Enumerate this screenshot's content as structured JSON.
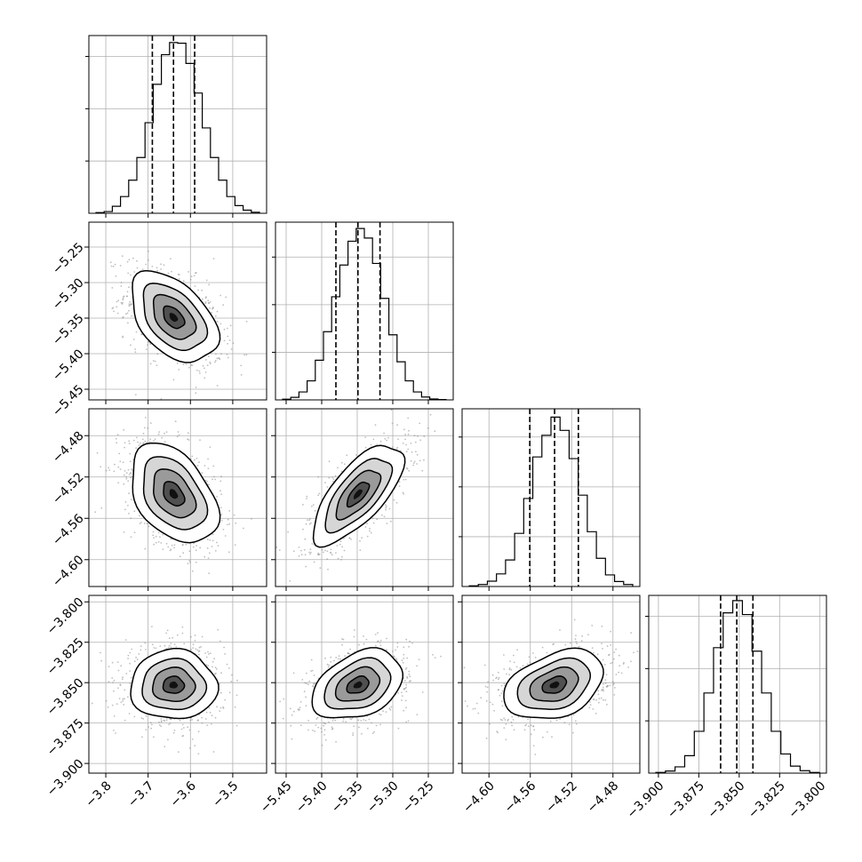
{
  "chart_data": {
    "type": "corner",
    "grid": true,
    "params": [
      {
        "range": [
          -3.84,
          -3.42
        ],
        "ticks": [
          {
            "v": -3.8,
            "label": "−3.8"
          },
          {
            "v": -3.7,
            "label": "−3.7"
          },
          {
            "v": -3.6,
            "label": "−3.6"
          },
          {
            "v": -3.5,
            "label": "−3.5"
          }
        ],
        "quantiles": [
          -3.69,
          -3.64,
          -3.59
        ],
        "hist": [
          2,
          5,
          20,
          48,
          95,
          160,
          260,
          370,
          455,
          490,
          488,
          430,
          345,
          245,
          160,
          95,
          48,
          22,
          9,
          3
        ],
        "hist_ymax": 510,
        "hist_yticks": [
          150,
          300,
          450
        ]
      },
      {
        "range": [
          -5.465,
          -5.215
        ],
        "ticks": [
          {
            "v": -5.45,
            "label": "−5.45"
          },
          {
            "v": -5.4,
            "label": "−5.40"
          },
          {
            "v": -5.35,
            "label": "−5.35"
          },
          {
            "v": -5.3,
            "label": "−5.30"
          },
          {
            "v": -5.25,
            "label": "−5.25"
          }
        ],
        "quantiles": [
          -5.38,
          -5.349,
          -5.318
        ],
        "hist": [
          2,
          8,
          25,
          60,
          125,
          215,
          325,
          425,
          500,
          540,
          510,
          430,
          320,
          205,
          120,
          60,
          25,
          9,
          3,
          1
        ],
        "hist_ymax": 560,
        "hist_yticks": [
          150,
          300,
          450
        ]
      },
      {
        "range": [
          -4.626,
          -4.454
        ],
        "ticks": [
          {
            "v": -4.6,
            "label": "−4.60"
          },
          {
            "v": -4.56,
            "label": "−4.56"
          },
          {
            "v": -4.52,
            "label": "−4.52"
          },
          {
            "v": -4.48,
            "label": "−4.48"
          }
        ],
        "quantiles": [
          -4.5605,
          -4.5365,
          -4.5135
        ],
        "hist": [
          2,
          6,
          16,
          38,
          80,
          160,
          265,
          390,
          455,
          510,
          470,
          385,
          275,
          165,
          85,
          35,
          15,
          6
        ],
        "hist_ymax": 535,
        "hist_yticks": [
          150,
          300,
          450
        ]
      },
      {
        "range": [
          -3.906,
          -3.796
        ],
        "ticks": [
          {
            "v": -3.9,
            "label": "−3.900"
          },
          {
            "v": -3.875,
            "label": "−3.875"
          },
          {
            "v": -3.85,
            "label": "−3.850"
          },
          {
            "v": -3.825,
            "label": "−3.825"
          },
          {
            "v": -3.8,
            "label": "−3.800"
          }
        ],
        "quantiles": [
          -3.8615,
          -3.8515,
          -3.8415
        ],
        "hist": [
          2,
          6,
          18,
          50,
          120,
          230,
          360,
          460,
          495,
          455,
          350,
          230,
          120,
          55,
          20,
          7,
          2
        ],
        "hist_ymax": 510,
        "hist_yticks": [
          150,
          300,
          450
        ]
      }
    ],
    "pairs": [
      {
        "x": 0,
        "y": 1,
        "mean": [
          -3.64,
          -5.349
        ],
        "sd": [
          0.05,
          0.031
        ],
        "rho": -0.45
      },
      {
        "x": 0,
        "y": 2,
        "mean": [
          -3.64,
          -4.5365
        ],
        "sd": [
          0.05,
          0.0235
        ],
        "rho": -0.4
      },
      {
        "x": 1,
        "y": 2,
        "mean": [
          -5.349,
          -4.5365
        ],
        "sd": [
          0.031,
          0.0235
        ],
        "rho": 0.7
      },
      {
        "x": 0,
        "y": 3,
        "mean": [
          -3.64,
          -3.8515
        ],
        "sd": [
          0.05,
          0.0105
        ],
        "rho": 0.0
      },
      {
        "x": 1,
        "y": 3,
        "mean": [
          -5.349,
          -3.8515
        ],
        "sd": [
          0.031,
          0.0105
        ],
        "rho": 0.35
      },
      {
        "x": 2,
        "y": 3,
        "mean": [
          -4.5365,
          -3.8515
        ],
        "sd": [
          0.0235,
          0.0105
        ],
        "rho": 0.35
      }
    ]
  }
}
